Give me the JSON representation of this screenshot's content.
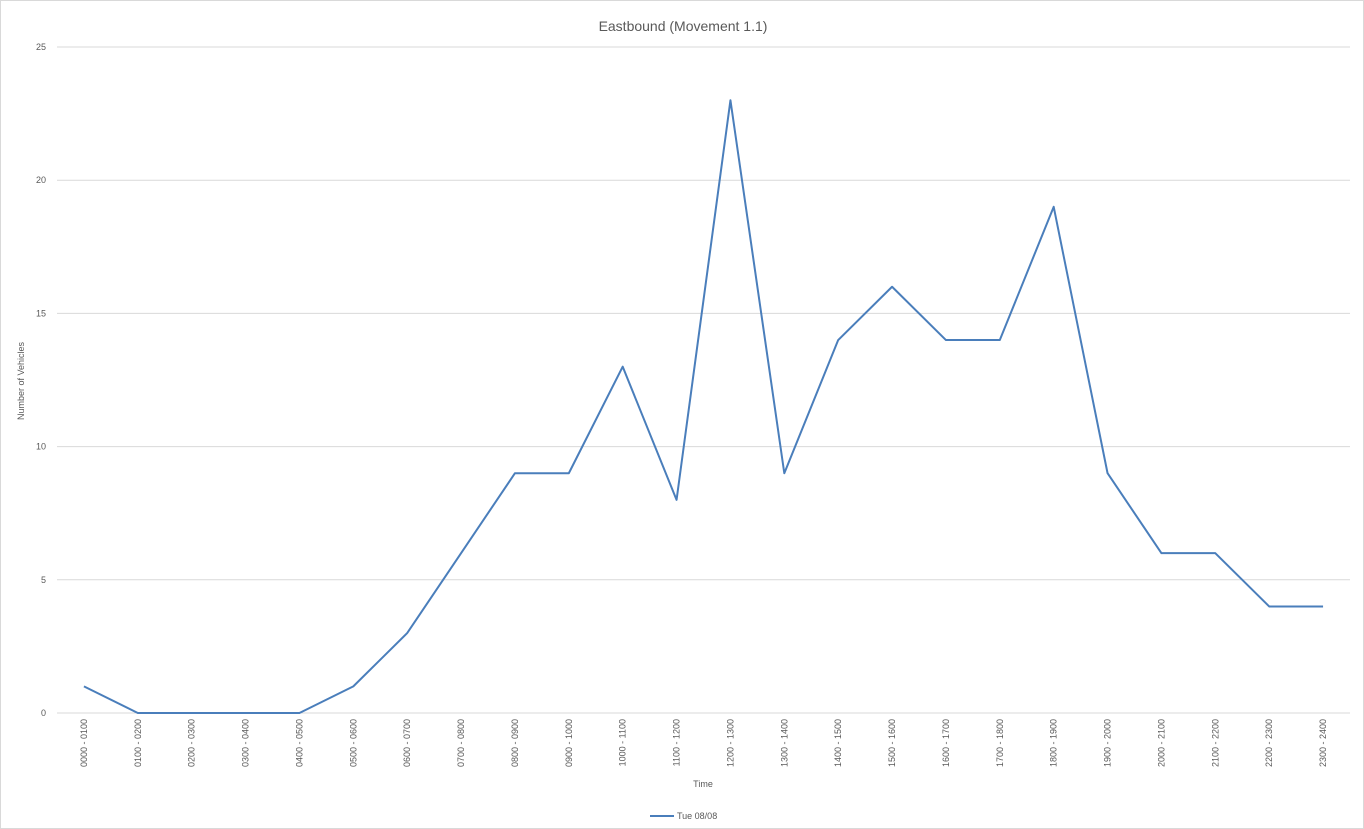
{
  "chart_data": {
    "type": "line",
    "title": "Eastbound (Movement 1.1)",
    "xlabel": "Time",
    "ylabel": "Number of Vehicles",
    "ylim": [
      0,
      25
    ],
    "yticks": [
      "0",
      "5",
      "10",
      "15",
      "20",
      "25"
    ],
    "grid": true,
    "legend_position": "bottom",
    "categories": [
      "0000 - 0100",
      "0100 - 0200",
      "0200 - 0300",
      "0300 - 0400",
      "0400 - 0500",
      "0500 - 0600",
      "0600 - 0700",
      "0700 - 0800",
      "0800 - 0900",
      "0900 - 1000",
      "1000 - 1100",
      "1100 - 1200",
      "1200 - 1300",
      "1300 - 1400",
      "1400 - 1500",
      "1500 - 1600",
      "1600 - 1700",
      "1700 - 1800",
      "1800 - 1900",
      "1900 - 2000",
      "2000 - 2100",
      "2100 - 2200",
      "2200 - 2300",
      "2300 - 2400"
    ],
    "series": [
      {
        "name": "Tue 08/08",
        "color": "#4a7ebb",
        "values": [
          1,
          0,
          0,
          0,
          0,
          1,
          3,
          6,
          9,
          9,
          13,
          8,
          23,
          9,
          14,
          16,
          14,
          14,
          19,
          9,
          6,
          6,
          4,
          4
        ]
      }
    ]
  }
}
